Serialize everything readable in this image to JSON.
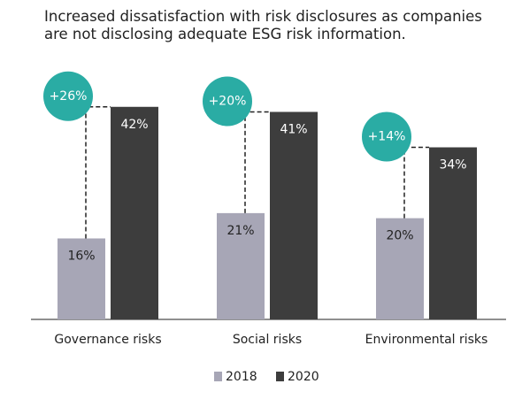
{
  "chart_data": {
    "type": "bar",
    "title": [
      "Increased dissatisfaction with risk disclosures as companies",
      "are not disclosing adequate ESG risk information."
    ],
    "categories": [
      "Governance risks",
      "Social risks",
      "Environmental risks"
    ],
    "series": [
      {
        "name": "2018",
        "color": "#a7a6b6",
        "values": [
          16,
          21,
          20
        ],
        "value_labels": [
          "16%",
          "21%",
          "20%"
        ]
      },
      {
        "name": "2020",
        "color": "#3d3d3d",
        "values": [
          42,
          41,
          34
        ],
        "value_labels": [
          "42%",
          "41%",
          "34%"
        ]
      }
    ],
    "annotations": [
      "+26%",
      "+20%",
      "+14%"
    ],
    "annotation_color": "#2aaca4"
  }
}
